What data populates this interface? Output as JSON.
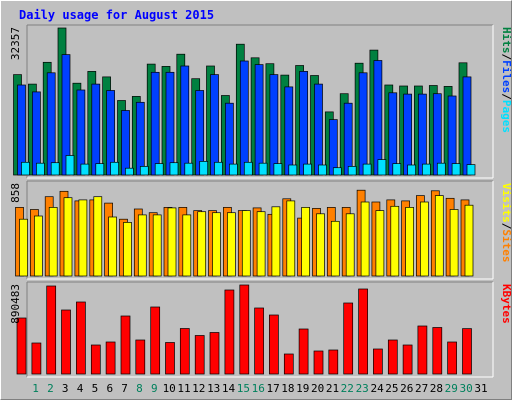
{
  "window": {
    "title": "Daily usage for August 2015"
  },
  "colors": {
    "hits": "#008040",
    "files": "#0040ff",
    "pages": "#00e0ff",
    "visits": "#ffff00",
    "sites": "#ff8000",
    "kbytes": "#ff0000",
    "separator": "#000000",
    "background": "#c0c0c0",
    "day_weekday": "#000000",
    "day_weekend": "#00805c"
  },
  "side_labels": {
    "top": [
      {
        "text": "Hits",
        "color_key": "hits"
      },
      {
        "text": "/",
        "color_key": "separator"
      },
      {
        "text": "Files",
        "color_key": "files"
      },
      {
        "text": "/",
        "color_key": "separator"
      },
      {
        "text": "Pages",
        "color_key": "pages"
      }
    ],
    "middle": [
      {
        "text": "Visits",
        "color_key": "visits"
      },
      {
        "text": "/",
        "color_key": "separator"
      },
      {
        "text": "Sites",
        "color_key": "sites"
      }
    ],
    "bottom": [
      {
        "text": "KBytes",
        "color_key": "kbytes"
      }
    ]
  },
  "chart_data": [
    {
      "type": "bar",
      "title": "Daily usage for August 2015",
      "ylabel": "Hits / Files / Pages",
      "y_max_label": "32357",
      "ylim": [
        0,
        32357
      ],
      "categories": [
        "1",
        "2",
        "3",
        "4",
        "5",
        "6",
        "7",
        "8",
        "9",
        "10",
        "11",
        "12",
        "13",
        "14",
        "15",
        "16",
        "17",
        "18",
        "19",
        "20",
        "21",
        "22",
        "23",
        "24",
        "25",
        "26",
        "27",
        "28",
        "29",
        "30",
        "31"
      ],
      "weekend_days": [
        "1",
        "2",
        "8",
        "9",
        "15",
        "16",
        "22",
        "23",
        "29",
        "30"
      ],
      "series": [
        {
          "name": "Hits",
          "color_key": "hits",
          "values": [
            22100,
            20000,
            24800,
            32357,
            20200,
            22800,
            21600,
            16400,
            17300,
            24400,
            23900,
            26600,
            21200,
            24000,
            17500,
            28800,
            25800,
            24500,
            22000,
            24100,
            21900,
            13900,
            17900,
            24600,
            27500,
            19800,
            19600,
            19600,
            19700,
            19500,
            24700
          ]
        },
        {
          "name": "Files",
          "color_key": "files",
          "values": [
            19800,
            18300,
            22500,
            26500,
            18700,
            20000,
            18600,
            14200,
            16000,
            22600,
            22600,
            24000,
            18600,
            22100,
            15800,
            25100,
            24300,
            22100,
            19400,
            22800,
            20000,
            12200,
            15800,
            22500,
            25200,
            18100,
            17800,
            17800,
            17900,
            17400,
            21600
          ]
        },
        {
          "name": "Pages",
          "color_key": "pages",
          "values": [
            2800,
            2600,
            2700,
            4300,
            2400,
            2500,
            2800,
            1500,
            1900,
            2500,
            2700,
            2600,
            3000,
            2800,
            2400,
            2800,
            2600,
            2500,
            2200,
            2400,
            2200,
            1600,
            1900,
            2400,
            3400,
            2500,
            2200,
            2400,
            2600,
            2500,
            2300
          ]
        }
      ]
    },
    {
      "type": "bar",
      "ylabel": "Sites / Visits",
      "y_max_label": "858",
      "ylim": [
        0,
        858
      ],
      "categories": [
        "1",
        "2",
        "3",
        "4",
        "5",
        "6",
        "7",
        "8",
        "9",
        "10",
        "11",
        "12",
        "13",
        "14",
        "15",
        "16",
        "17",
        "18",
        "19",
        "20",
        "21",
        "22",
        "23",
        "24",
        "25",
        "26",
        "27",
        "28",
        "29",
        "30",
        "31"
      ],
      "series": [
        {
          "name": "Sites",
          "color_key": "sites",
          "values": [
            640,
            620,
            740,
            790,
            700,
            710,
            680,
            530,
            625,
            590,
            640,
            640,
            610,
            610,
            640,
            610,
            635,
            575,
            720,
            540,
            630,
            640,
            640,
            800,
            690,
            710,
            700,
            750,
            795,
            725,
            710
          ]
        },
        {
          "name": "Visits",
          "color_key": "visits",
          "values": [
            530,
            560,
            640,
            730,
            710,
            740,
            550,
            500,
            570,
            570,
            635,
            570,
            600,
            590,
            590,
            610,
            600,
            645,
            700,
            640,
            580,
            510,
            580,
            690,
            610,
            650,
            640,
            690,
            750,
            620,
            660
          ]
        }
      ]
    },
    {
      "type": "bar",
      "ylabel": "KBytes",
      "y_max_label": "890483",
      "ylim": [
        0,
        890483
      ],
      "categories": [
        "1",
        "2",
        "3",
        "4",
        "5",
        "6",
        "7",
        "8",
        "9",
        "10",
        "11",
        "12",
        "13",
        "14",
        "15",
        "16",
        "17",
        "18",
        "19",
        "20",
        "21",
        "22",
        "23",
        "24",
        "25",
        "26",
        "27",
        "28",
        "29",
        "30",
        "31"
      ],
      "series": [
        {
          "name": "KBytes",
          "color_key": "kbytes",
          "values": [
            560000,
            310000,
            880000,
            640000,
            720000,
            290000,
            320000,
            580000,
            340000,
            670000,
            315000,
            455000,
            385000,
            415000,
            840000,
            890483,
            660000,
            590000,
            200000,
            450000,
            230000,
            240000,
            710000,
            850000,
            250000,
            340000,
            290000,
            480000,
            465000,
            320000,
            454000
          ]
        }
      ]
    }
  ]
}
